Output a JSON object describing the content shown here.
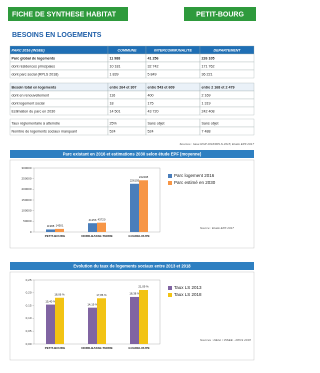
{
  "header": {
    "left": "FICHE DE SYNTHESE HABITAT",
    "right": "PETIT-BOURG"
  },
  "section_title": "BESOINS EN LOGEMENTS",
  "tables": [
    {
      "columns": [
        "PARC 2016 (INSEE)",
        "COMMUNE",
        "INTERCOMMUNALITE",
        "DEPARTEMENT"
      ],
      "rows": [
        [
          "Parc global de logements",
          "11 988",
          "41 256",
          "226 105"
        ],
        [
          "dont résidences principales",
          "10 181",
          "32 742",
          "171 762"
        ],
        [
          "dont parc social (RPLS 2018)",
          "1 839",
          "5 849",
          "36 221"
        ]
      ]
    },
    {
      "rows": [
        [
          "Besoin total en logements",
          "entre 264 et 307",
          "entre 543 et 609",
          "entre 2 168 et 2 479"
        ],
        [
          "dont en renouvellement",
          "116",
          "400",
          "2 169"
        ],
        [
          "dont logement social",
          "18",
          "175",
          "1 319"
        ],
        [
          "Estimation du parc en 2030",
          "14 501",
          "43 720",
          "242 408"
        ]
      ]
    },
    {
      "rows": [
        [
          "Taux réglementaire à atteindre",
          "25%",
          "Sans objet",
          "Sans objet"
        ],
        [
          "Nombre de logements sociaux manquant",
          "524",
          "524",
          "7 488"
        ]
      ]
    }
  ],
  "table_source": "Sources : base RGP 2016/RPLS 2018, Etude EPF 2017",
  "chart_data": [
    {
      "type": "bar",
      "title": "Parc existant en 2016 et estimations 2030 selon étude EPF (moyenne)",
      "categories": [
        "PETIT-BOURG",
        "NORD-BASSE-TERRE",
        "GUADELOUPE"
      ],
      "series": [
        {
          "name": "Parc logement 2016",
          "color": "#4a7ebb",
          "values": [
            11988,
            41256,
            226105
          ]
        },
        {
          "name": "Parc estimé en 2030",
          "color": "#f79646",
          "values": [
            14501,
            43720,
            242408
          ]
        }
      ],
      "ylim": [
        0,
        300000
      ],
      "yticks": [
        0,
        50000,
        100000,
        150000,
        200000,
        250000,
        300000
      ],
      "source": "Source : Etude EPF 2017"
    },
    {
      "type": "bar",
      "title": "Evolution du taux de logements sociaux entre 2013 et 2018",
      "categories": [
        "PETIT-BOURG",
        "NORD-BASSE-TERRE",
        "GUADELOUPE"
      ],
      "series": [
        {
          "name": "Taux LS 2013",
          "color": "#8064a2",
          "values": [
            0.154,
            0.1419,
            0.1838
          ],
          "value_labels": [
            "15,40 %",
            "14,19 %",
            "18,38 %"
          ]
        },
        {
          "name": "Taux LS 2018",
          "color": "#f2c314",
          "values": [
            0.1806,
            0.1786,
            0.2109
          ],
          "value_labels": [
            "18,06 %",
            "17,86 %",
            "21,09 %"
          ]
        }
      ],
      "ylim": [
        0,
        0.25
      ],
      "yticks": [
        {
          "value": 0,
          "label": "0,00"
        },
        {
          "value": 0.05,
          "label": "0,05"
        },
        {
          "value": 0.1,
          "label": "0,10"
        },
        {
          "value": 0.15,
          "label": "0,15"
        },
        {
          "value": 0.2,
          "label": "0,20"
        },
        {
          "value": 0.25,
          "label": "0,25"
        }
      ],
      "source": "Sources : DEAL / INSEE - RPLS 2018"
    }
  ]
}
